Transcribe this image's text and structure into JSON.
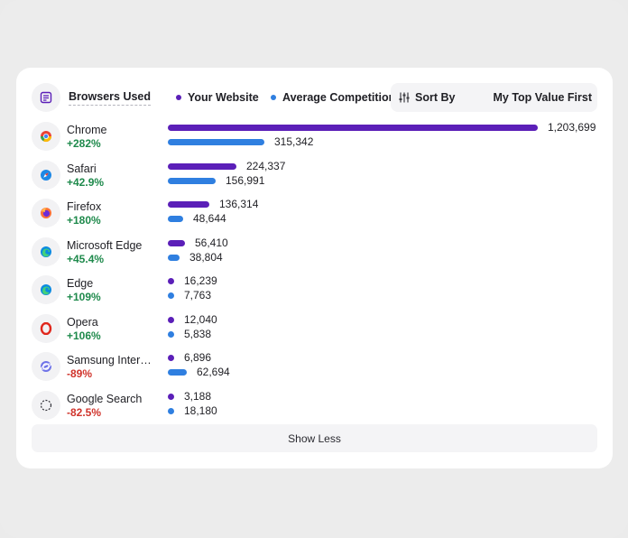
{
  "header": {
    "title": "Browsers Used",
    "legend_your": "Your Website",
    "legend_avg": "Average Competition",
    "sort_label": "Sort By",
    "sort_value": "My Top Value First"
  },
  "colors": {
    "your": "#5b1fb8",
    "avg": "#2f7fe0",
    "positive": "#1f8a4c",
    "negative": "#d0342c"
  },
  "chart_data": {
    "type": "bar",
    "categories": [
      "Chrome",
      "Safari",
      "Firefox",
      "Microsoft Edge",
      "Edge",
      "Opera",
      "Samsung Intern...",
      "Google Search"
    ],
    "series": [
      {
        "name": "Your Website",
        "values": [
          1203699,
          224337,
          136314,
          56410,
          16239,
          12040,
          6896,
          3188
        ]
      },
      {
        "name": "Average Competition",
        "values": [
          315342,
          156991,
          48644,
          38804,
          7763,
          5838,
          62694,
          18180
        ]
      }
    ]
  },
  "browsers": [
    {
      "name": "Chrome",
      "change": "+282%",
      "trend": "up",
      "icon": "chrome-icon",
      "your_label": "1,203,699",
      "avg_label": "315,342"
    },
    {
      "name": "Safari",
      "change": "+42.9%",
      "trend": "up",
      "icon": "safari-icon",
      "your_label": "224,337",
      "avg_label": "156,991"
    },
    {
      "name": "Firefox",
      "change": "+180%",
      "trend": "up",
      "icon": "firefox-icon",
      "your_label": "136,314",
      "avg_label": "48,644"
    },
    {
      "name": "Microsoft Edge",
      "change": "+45.4%",
      "trend": "up",
      "icon": "microsoft-edge-icon",
      "your_label": "56,410",
      "avg_label": "38,804"
    },
    {
      "name": "Edge",
      "change": "+109%",
      "trend": "up",
      "icon": "edge-icon",
      "your_label": "16,239",
      "avg_label": "7,763"
    },
    {
      "name": "Opera",
      "change": "+106%",
      "trend": "up",
      "icon": "opera-icon",
      "your_label": "12,040",
      "avg_label": "5,838"
    },
    {
      "name": "Samsung Intern...",
      "change": "-89%",
      "trend": "down",
      "icon": "samsung-internet-icon",
      "your_label": "6,896",
      "avg_label": "62,694"
    },
    {
      "name": "Google Search",
      "change": "-82.5%",
      "trend": "down",
      "icon": "google-search-icon",
      "your_label": "3,188",
      "avg_label": "18,180"
    }
  ],
  "footer": {
    "show_less": "Show Less"
  }
}
